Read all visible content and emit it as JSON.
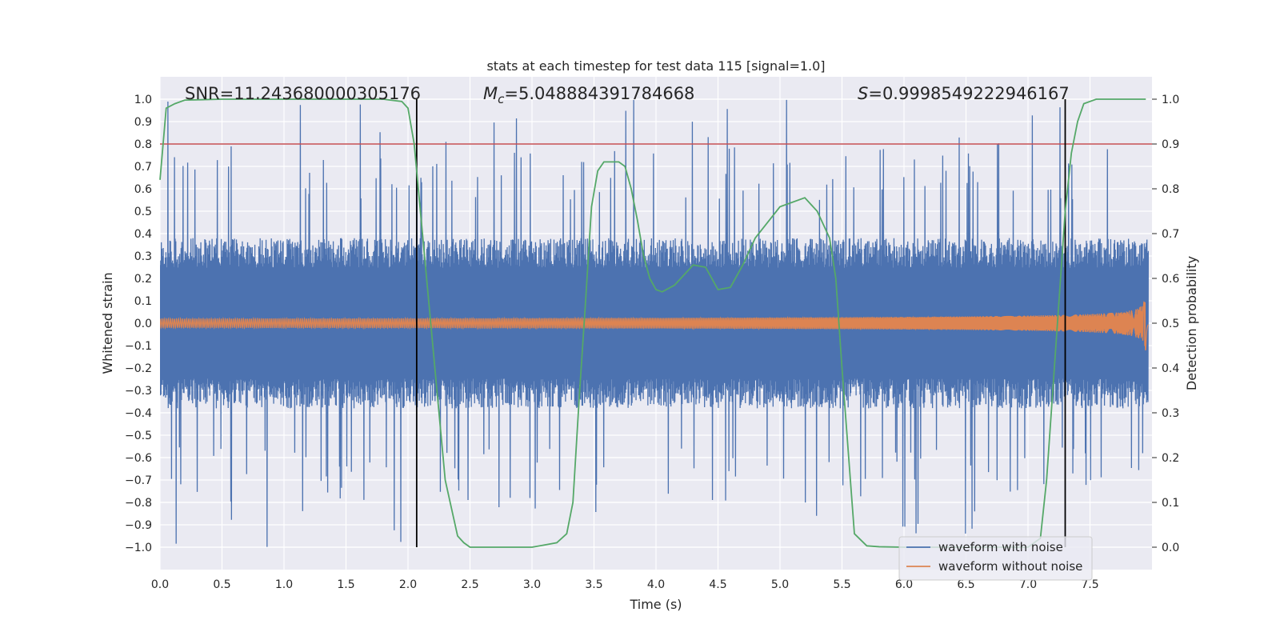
{
  "chart_data": {
    "type": "line",
    "title": "stats at each timestep for test data 115 [signal=1.0]",
    "xlabel": "Time (s)",
    "ylabel_left": "Whitened strain",
    "ylabel_right": "Detection probability",
    "xlim": [
      0.0,
      8.0
    ],
    "ylim_left": [
      -1.1,
      1.1
    ],
    "ylim_right": [
      -0.05,
      1.05
    ],
    "x_ticks": [
      "0.0",
      "0.5",
      "1.0",
      "1.5",
      "2.0",
      "2.5",
      "3.0",
      "3.5",
      "4.0",
      "4.5",
      "5.0",
      "5.5",
      "6.0",
      "6.5",
      "7.0",
      "7.5"
    ],
    "y_left_ticks": [
      "1.0",
      "0.9",
      "0.8",
      "0.7",
      "0.6",
      "0.5",
      "0.4",
      "0.3",
      "0.2",
      "0.1",
      "0.0",
      "−0.1",
      "−0.2",
      "−0.3",
      "−0.4",
      "−0.5",
      "−0.6",
      "−0.7",
      "−0.8",
      "−0.9",
      "−1.0"
    ],
    "y_right_ticks": [
      "1.0",
      "0.9",
      "0.8",
      "0.7",
      "0.6",
      "0.5",
      "0.4",
      "0.3",
      "0.2",
      "0.1",
      "0.0"
    ],
    "grid": true,
    "legend_position": "lower-right",
    "annotations": {
      "snr": "SNR=11.243680000305176",
      "mc_symbol": "M",
      "mc_sub": "c",
      "mc_value": "=5.048884391784668",
      "s_symbol": "S",
      "s_value": "=0.9998549222946167"
    },
    "series": [
      {
        "name": "waveform with noise",
        "color": "#4c72b0",
        "axis": "left",
        "kind": "noise",
        "amplitude_typical": 0.38,
        "amplitude_peak": 1.0
      },
      {
        "name": "waveform without noise",
        "color": "#dd8452",
        "axis": "left",
        "kind": "chirp",
        "amplitude_start": 0.02,
        "amplitude_end": 0.3,
        "merger_time": 7.95
      },
      {
        "name": "",
        "color": "#55a868",
        "axis": "right",
        "kind": "probability",
        "x": [
          0.0,
          0.05,
          0.12,
          0.2,
          0.5,
          1.0,
          1.5,
          1.8,
          1.95,
          2.0,
          2.05,
          2.1,
          2.15,
          2.2,
          2.3,
          2.4,
          2.45,
          2.5,
          2.6,
          2.8,
          3.0,
          3.1,
          3.2,
          3.28,
          3.33,
          3.38,
          3.43,
          3.48,
          3.53,
          3.58,
          3.63,
          3.7,
          3.75,
          3.8,
          3.85,
          3.9,
          3.95,
          4.0,
          4.05,
          4.15,
          4.3,
          4.4,
          4.5,
          4.6,
          4.7,
          4.8,
          5.0,
          5.2,
          5.3,
          5.35,
          5.4,
          5.45,
          5.5,
          5.6,
          5.7,
          5.8,
          6.0,
          6.5,
          7.0,
          7.1,
          7.15,
          7.2,
          7.25,
          7.3,
          7.35,
          7.4,
          7.45,
          7.55,
          7.7,
          7.9,
          7.95
        ],
        "values": [
          0.82,
          0.98,
          0.99,
          0.998,
          1.0,
          1.0,
          1.0,
          1.0,
          0.995,
          0.98,
          0.9,
          0.75,
          0.6,
          0.45,
          0.15,
          0.025,
          0.01,
          0.0,
          0.0,
          0.0,
          0.0,
          0.005,
          0.01,
          0.03,
          0.1,
          0.33,
          0.54,
          0.76,
          0.84,
          0.86,
          0.86,
          0.86,
          0.85,
          0.8,
          0.73,
          0.65,
          0.6,
          0.575,
          0.57,
          0.585,
          0.63,
          0.625,
          0.575,
          0.58,
          0.63,
          0.69,
          0.76,
          0.78,
          0.75,
          0.72,
          0.69,
          0.6,
          0.4,
          0.03,
          0.003,
          0.001,
          0.0,
          0.0,
          0.0,
          0.02,
          0.15,
          0.35,
          0.55,
          0.75,
          0.88,
          0.95,
          0.99,
          1.0,
          1.0,
          1.0,
          1.0
        ]
      }
    ],
    "threshold": {
      "value": 0.9,
      "axis": "right",
      "color": "#c44e52"
    },
    "vertical_lines": {
      "x": [
        2.07,
        7.3
      ],
      "color": "#000000",
      "ymin": 0.0,
      "ymax": 1.0,
      "axis": "right"
    }
  }
}
